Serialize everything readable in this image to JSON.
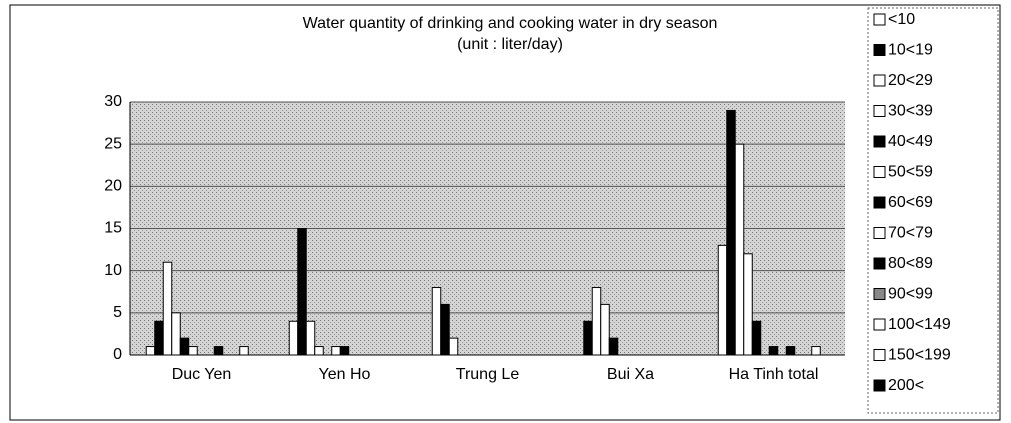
{
  "chart_data": {
    "type": "bar",
    "title": "Water quantity of drinking and cooking water in dry season",
    "subtitle": "(unit : liter/day)",
    "categories": [
      "Duc Yen",
      "Yen Ho",
      "Trung Le",
      "Bui Xa",
      "Ha Tinh total"
    ],
    "ylim": [
      0,
      30
    ],
    "yticks": [
      0,
      5,
      10,
      15,
      20,
      25,
      30
    ],
    "grid": true,
    "legend": "right",
    "series": [
      {
        "name": "<10",
        "color": "#ffffff",
        "values": [
          1,
          4,
          8,
          0,
          13
        ]
      },
      {
        "name": "10<19",
        "color": "#000000",
        "values": [
          4,
          15,
          6,
          4,
          29
        ]
      },
      {
        "name": "20<29",
        "color": "#ffffff",
        "values": [
          11,
          4,
          2,
          8,
          25
        ]
      },
      {
        "name": "30<39",
        "color": "#ffffff",
        "values": [
          5,
          1,
          0,
          6,
          12
        ]
      },
      {
        "name": "40<49",
        "color": "#000000",
        "values": [
          2,
          0,
          0,
          2,
          4
        ]
      },
      {
        "name": "50<59",
        "color": "#ffffff",
        "values": [
          1,
          1,
          0,
          0,
          0
        ]
      },
      {
        "name": "60<69",
        "color": "#000000",
        "values": [
          0,
          1,
          0,
          0,
          1
        ]
      },
      {
        "name": "70<79",
        "color": "#ffffff",
        "values": [
          0,
          0,
          0,
          0,
          0
        ]
      },
      {
        "name": "80<89",
        "color": "#000000",
        "values": [
          1,
          0,
          0,
          0,
          1
        ]
      },
      {
        "name": "90<99",
        "color": "#888888",
        "values": [
          0,
          0,
          0,
          0,
          0
        ]
      },
      {
        "name": "100<149",
        "color": "#ffffff",
        "values": [
          0,
          0,
          0,
          0,
          0
        ]
      },
      {
        "name": "150<199",
        "color": "#ffffff",
        "values": [
          1,
          0,
          0,
          0,
          1
        ]
      },
      {
        "name": "200<",
        "color": "#000000",
        "values": [
          0,
          0,
          0,
          0,
          0
        ]
      }
    ]
  }
}
